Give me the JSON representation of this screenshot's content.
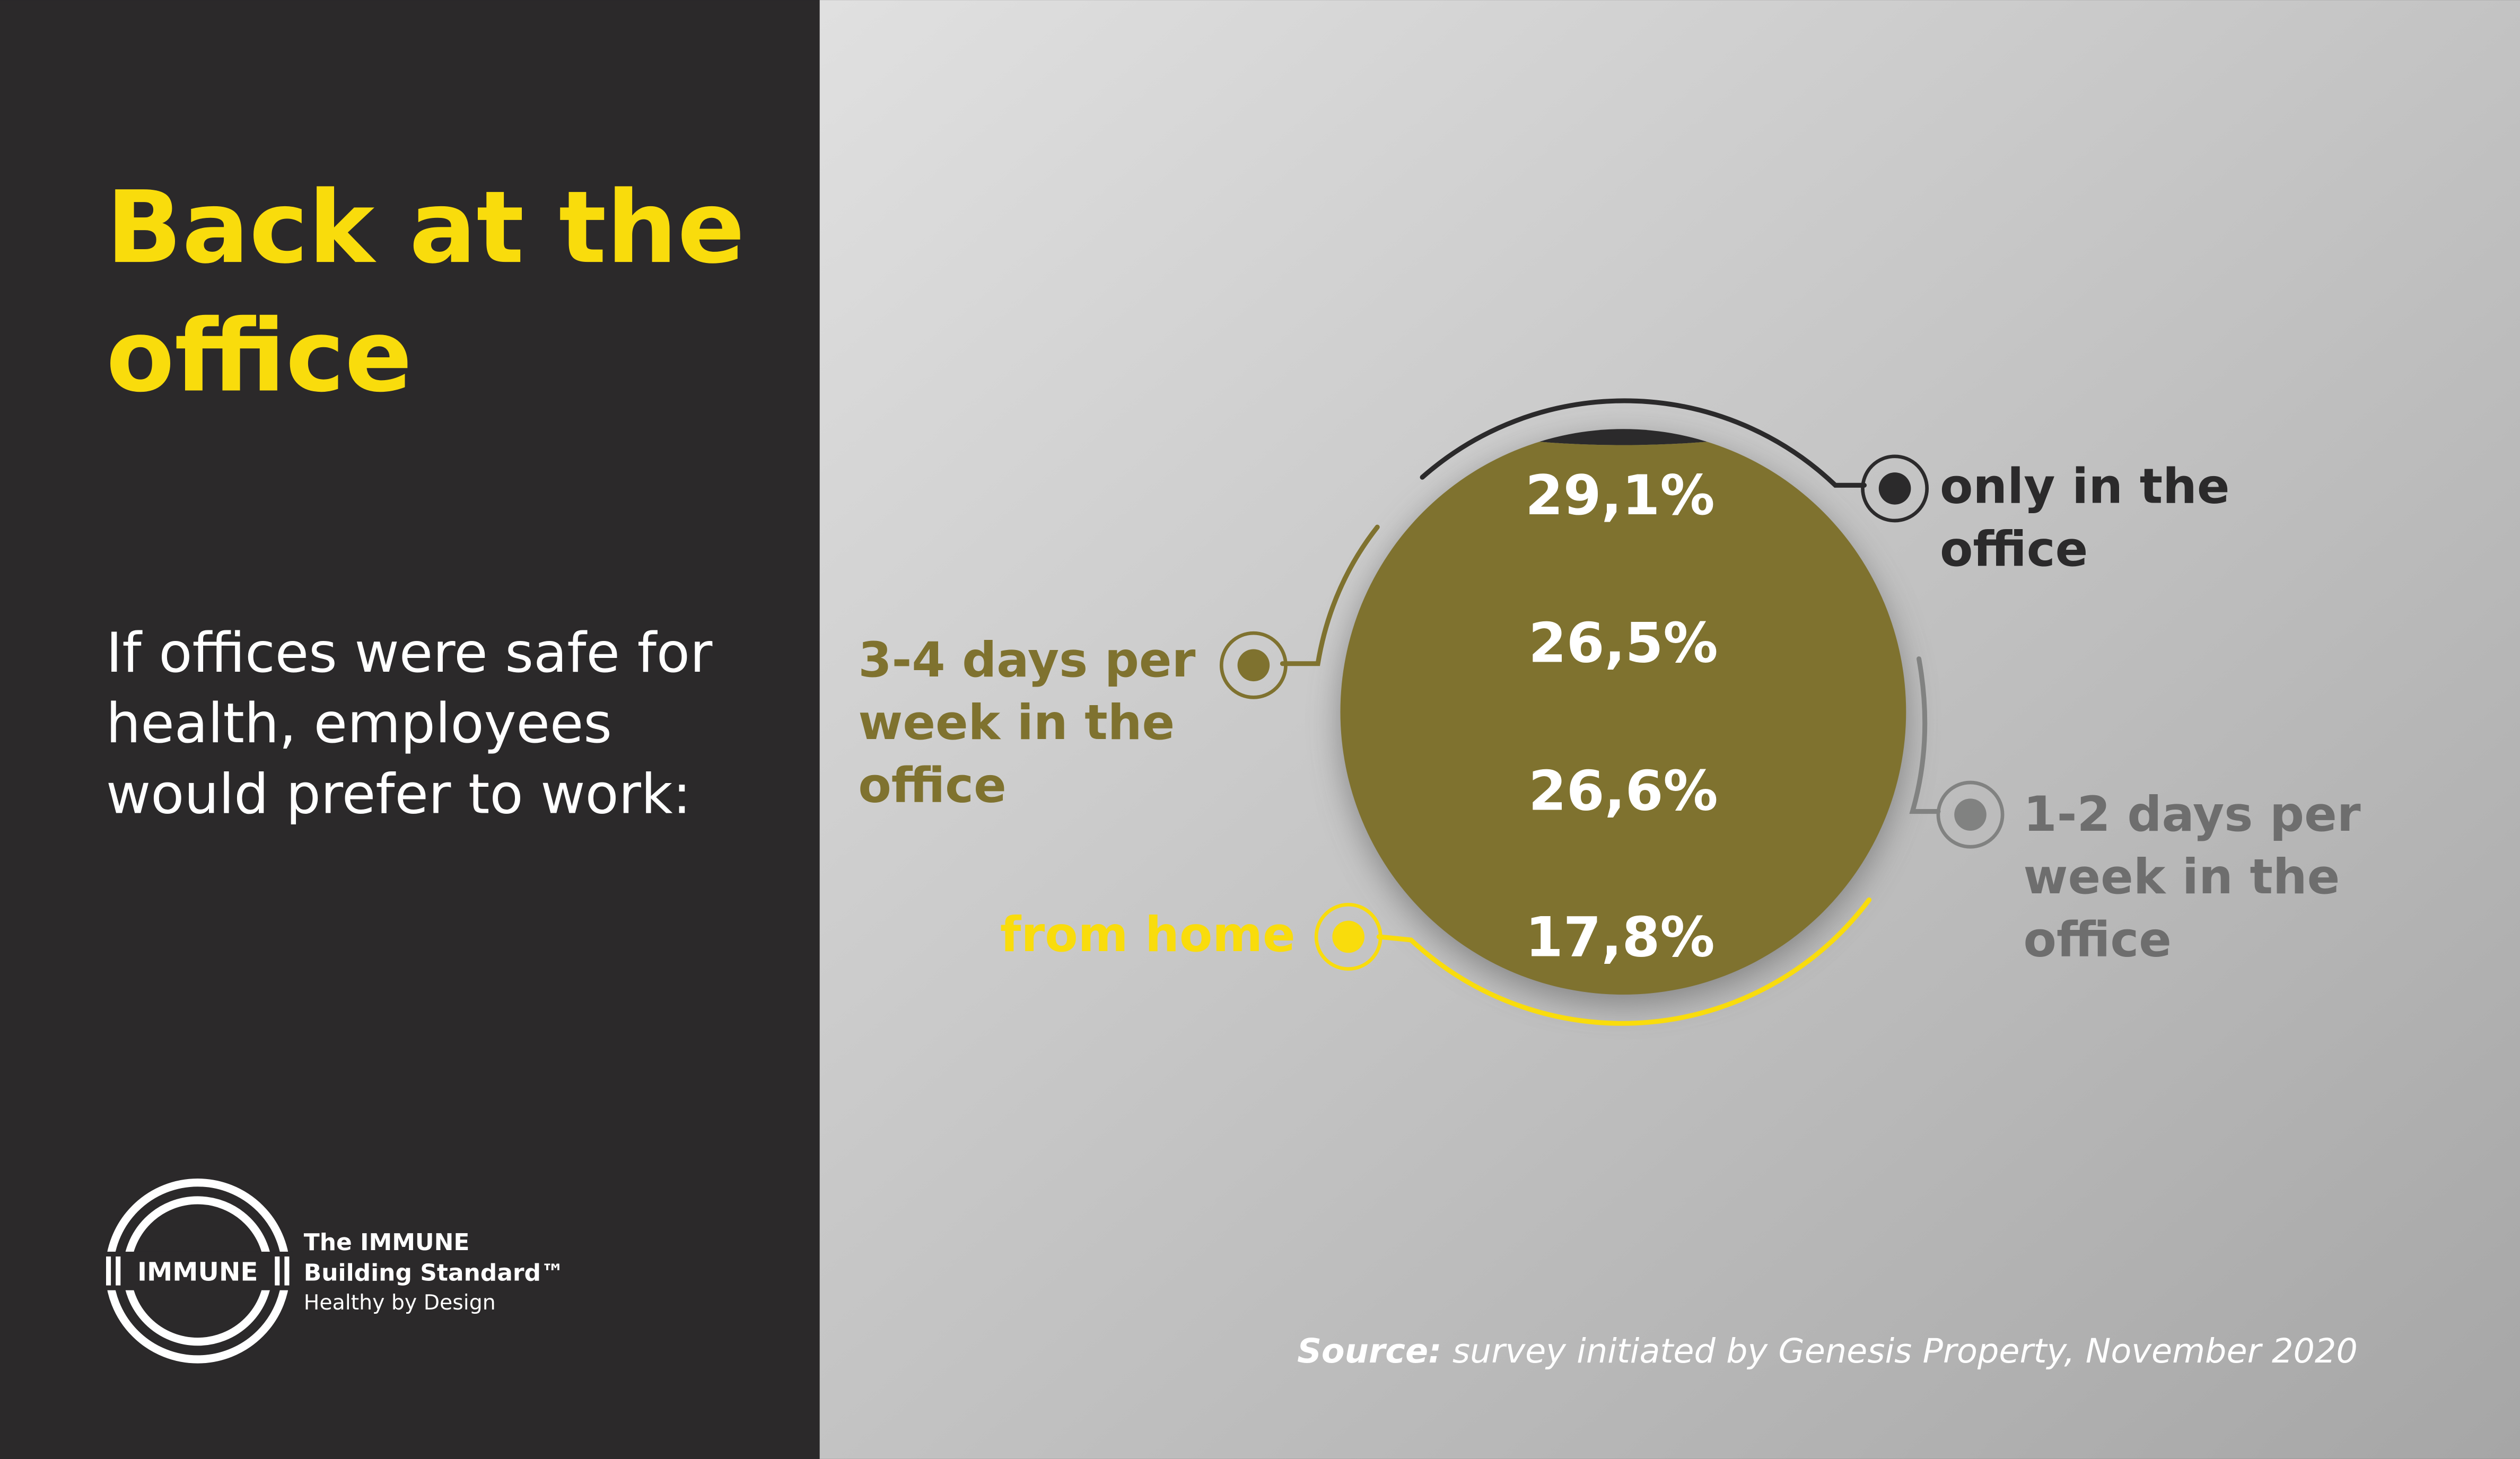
{
  "left_panel": {
    "title_lines": [
      "Back at the",
      "office"
    ],
    "subtitle_lines": [
      "If offices were safe for",
      "health, employees",
      "would prefer to work:"
    ],
    "logo": {
      "mark_text": "IMMUNE",
      "line1": "The IMMUNE",
      "line2": "Building Standard™",
      "tagline": "Healthy by Design"
    }
  },
  "source": {
    "label": "Source:",
    "text": " survey initiated by Genesis Property, November 2020"
  },
  "colors": {
    "panel": "#2b292a",
    "accent_yellow": "#f9dc0c",
    "olive": "#7f722f",
    "grey": "#818281",
    "dark": "#2b2a2b"
  },
  "chart_data": {
    "type": "pie",
    "style": "horizontal-band circle",
    "title": "Back at the office",
    "categories": [
      "only in the office",
      "3-4 days per week in the office",
      "1-2 days per week in the office",
      "from home"
    ],
    "values": [
      29.1,
      26.5,
      26.6,
      17.8
    ],
    "value_labels": [
      "29,1%",
      "26,5%",
      "26,6%",
      "17,8%"
    ],
    "label_lines": [
      [
        "only in the",
        "office"
      ],
      [
        "3-4 days per",
        "week in the",
        "office"
      ],
      [
        "1-2 days per",
        "week in the",
        "office"
      ],
      [
        "from home"
      ]
    ],
    "colors": [
      "#2b2a2b",
      "#7f722f",
      "#818281",
      "#f9dc0c"
    ],
    "unit": "%"
  }
}
